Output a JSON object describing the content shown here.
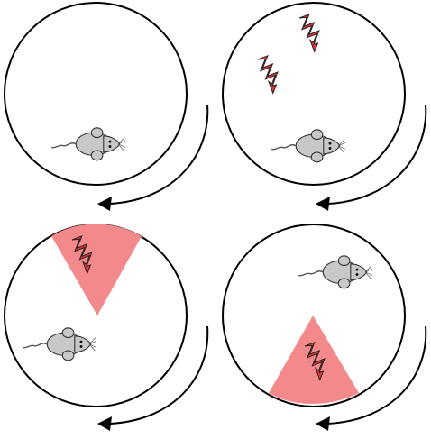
{
  "panels": [
    {
      "id": "top-left",
      "shocks": 0,
      "zone": "none",
      "mouse": "bottom-left"
    },
    {
      "id": "top-right",
      "shocks": 2,
      "zone": "none",
      "mouse": "bottom"
    },
    {
      "id": "bottom-left",
      "shocks": 1,
      "zone": "top",
      "mouse": "left"
    },
    {
      "id": "bottom-right",
      "shocks": 1,
      "zone": "bottom",
      "mouse": "top-right"
    }
  ],
  "colors": {
    "arena_stroke": "#000000",
    "shock": "#e8343a",
    "zone": "#f4898c",
    "mouse_body": "#c8c8c8",
    "mouse_outline": "#333333"
  },
  "icons": [
    "arena-circle",
    "shock-icon",
    "shock-zone",
    "mouse-icon",
    "rotation-arrow"
  ]
}
